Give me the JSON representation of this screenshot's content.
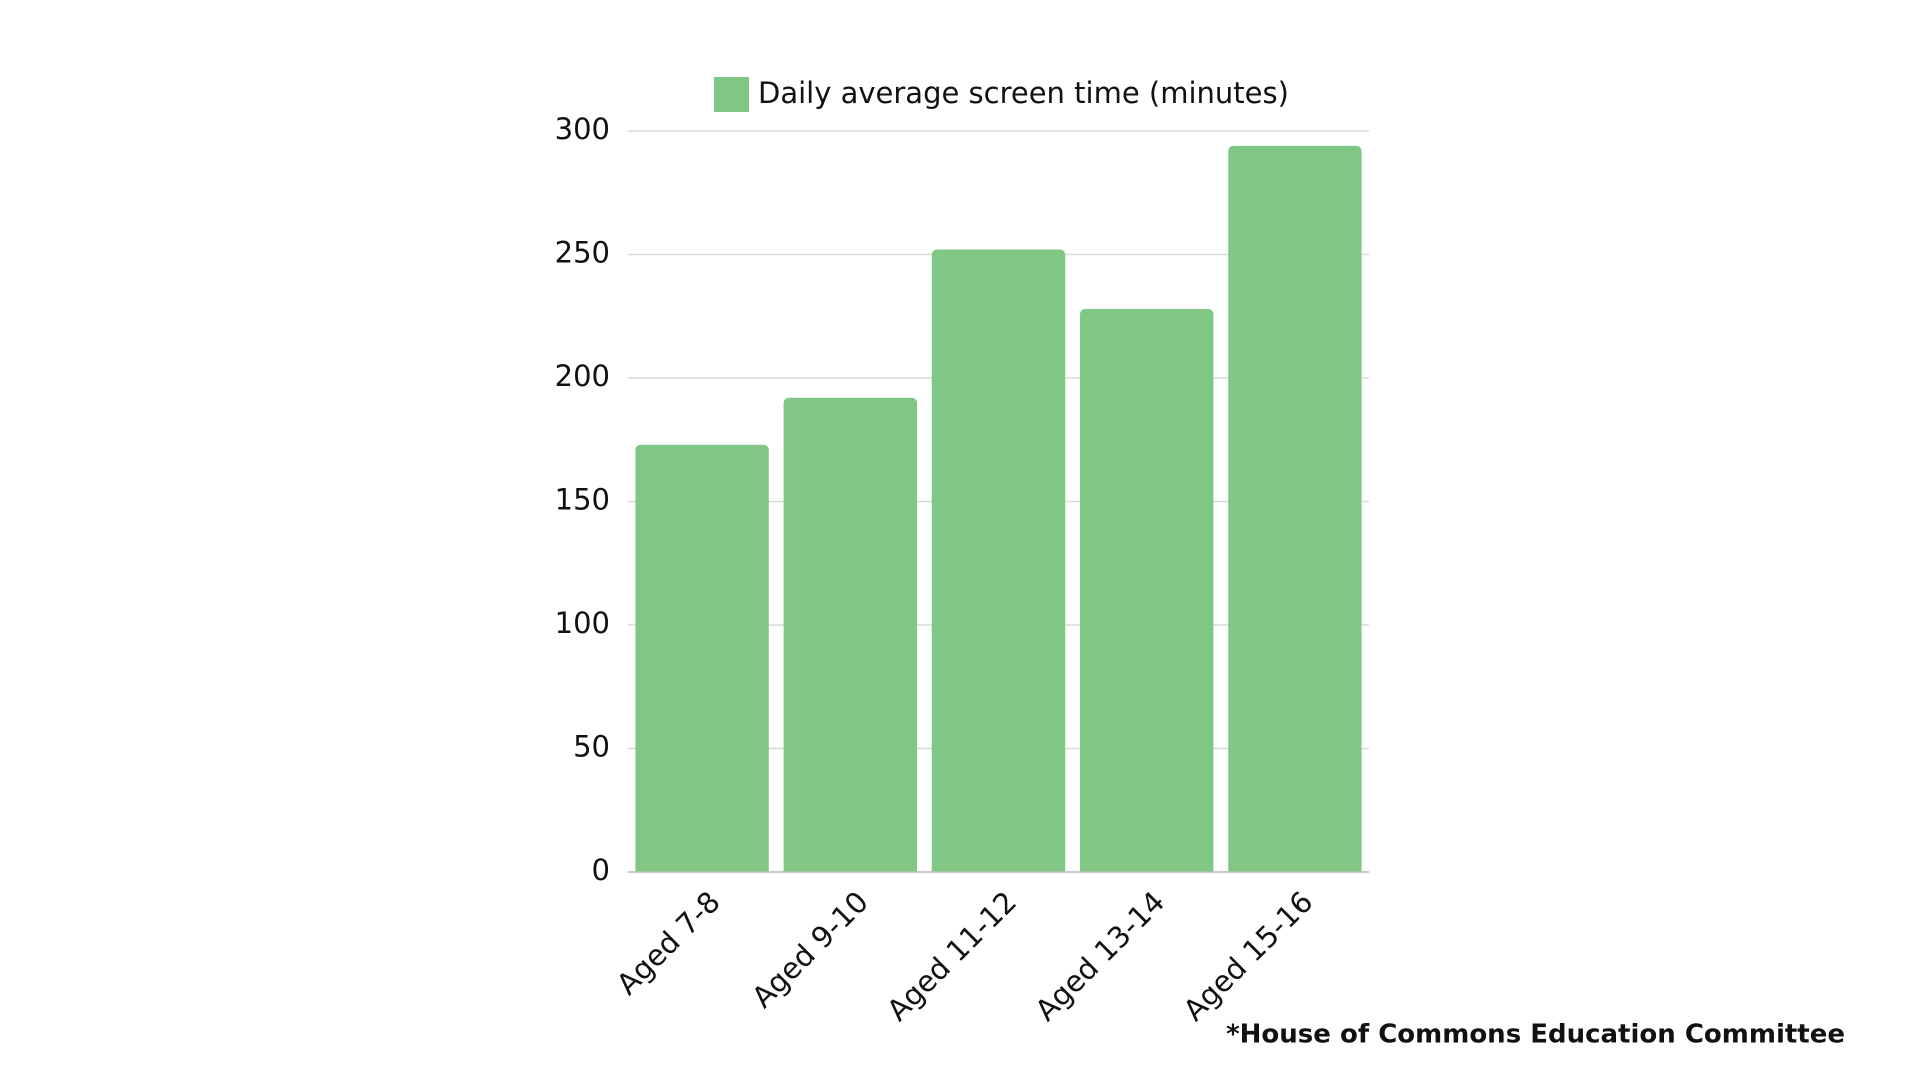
{
  "chart_data": {
    "type": "bar",
    "categories": [
      "Aged 7-8",
      "Aged 9-10",
      "Aged 11-12",
      "Aged 13-14",
      "Aged 15-16"
    ],
    "series": [
      {
        "name": "Daily average screen time (minutes)",
        "color": "#81c784",
        "values": [
          173,
          192,
          252,
          228,
          294
        ]
      }
    ],
    "ylim": [
      0,
      300
    ],
    "yticks": [
      0,
      50,
      100,
      150,
      200,
      250,
      300
    ],
    "grid": true,
    "legend": "top",
    "source": "*House of Commons Education Committee"
  }
}
